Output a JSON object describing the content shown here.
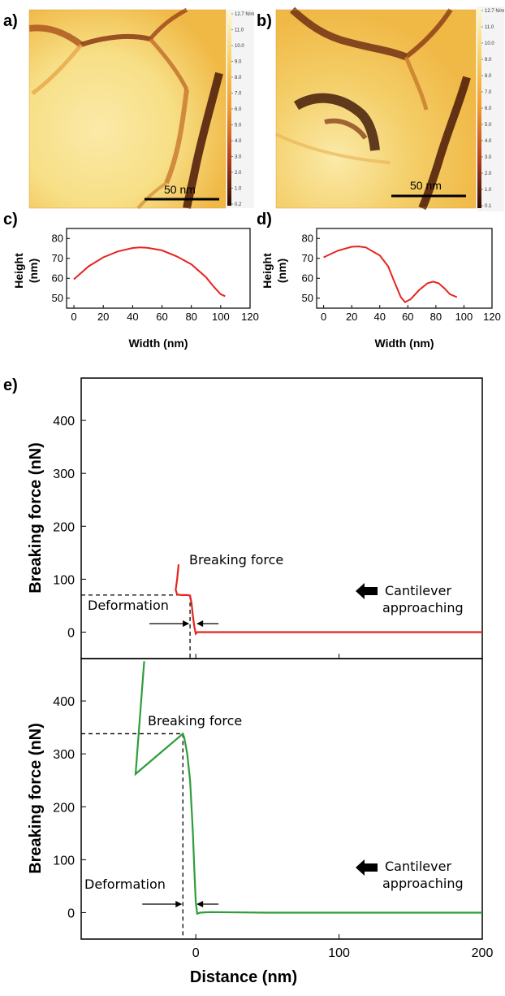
{
  "panels": {
    "a": "a)",
    "b": "b)",
    "c": "c)",
    "d": "d)",
    "e": "e)"
  },
  "images": [
    {
      "panel": "a",
      "scale_bar": "50 nm",
      "colorbar_ticks": [
        "12.7 N/m",
        "11.0",
        "10.0",
        "9.0",
        "8.0",
        "7.0",
        "6.0",
        "5.0",
        "4.0",
        "3.0",
        "2.0",
        "1.0",
        "0.2"
      ],
      "colors": {
        "light": "#f7df86",
        "mid": "#f2b23c",
        "dark": "#6a2810"
      }
    },
    {
      "panel": "b",
      "scale_bar": "50 nm",
      "colorbar_ticks": [
        "12.7 N/m",
        "11.0",
        "10.0",
        "9.0",
        "8.0",
        "7.0",
        "6.0",
        "5.0",
        "4.0",
        "3.0",
        "2.0",
        "1.0",
        "0.1"
      ],
      "colors": {
        "light": "#f7df86",
        "mid": "#f2b23c",
        "dark": "#6a2810"
      }
    }
  ],
  "chart_data": [
    {
      "type": "line",
      "panel": "c",
      "xlabel": "Width (nm)",
      "ylabel": "Height (nm)",
      "xlim": [
        -5,
        120
      ],
      "ylim": [
        45,
        85
      ],
      "xticks": [
        0,
        20,
        40,
        60,
        80,
        100,
        120
      ],
      "yticks": [
        50,
        60,
        70,
        80
      ],
      "series": [
        {
          "color": "#e52420",
          "x": [
            0,
            10,
            20,
            30,
            40,
            45,
            50,
            60,
            70,
            80,
            90,
            95,
            100,
            103
          ],
          "y": [
            59.5,
            66,
            70.5,
            73.5,
            75.2,
            75.5,
            75.3,
            74,
            71,
            67,
            60.5,
            56,
            52,
            51
          ]
        }
      ]
    },
    {
      "type": "line",
      "panel": "d",
      "xlabel": "Width (nm)",
      "ylabel": "Height (nm)",
      "xlim": [
        -5,
        120
      ],
      "ylim": [
        45,
        85
      ],
      "xticks": [
        0,
        20,
        40,
        60,
        80,
        100,
        120
      ],
      "yticks": [
        50,
        60,
        70,
        80
      ],
      "series": [
        {
          "color": "#e52420",
          "x": [
            0,
            10,
            20,
            25,
            30,
            40,
            46,
            50,
            55,
            58,
            62,
            68,
            74,
            78,
            82,
            86,
            90,
            95
          ],
          "y": [
            70.5,
            73.8,
            75.8,
            76,
            75.5,
            71.5,
            66,
            59,
            50.5,
            48,
            49.5,
            54,
            57.5,
            58.3,
            57.5,
            55,
            52,
            50.5
          ]
        }
      ]
    },
    {
      "type": "line",
      "panel": "e-top",
      "xlabel": "",
      "ylabel": "Breaking force (nN)",
      "xlim": [
        -80,
        200
      ],
      "ylim": [
        -50,
        480
      ],
      "xticks": [
        0,
        100,
        200
      ],
      "yticks": [
        0,
        100,
        200,
        300,
        400
      ],
      "series": [
        {
          "color": "#e52420",
          "x": [
            -12,
            -13,
            -14,
            -13,
            -10,
            -6,
            -4,
            -3,
            -2,
            -1,
            0,
            1,
            5,
            50,
            100,
            150,
            200
          ],
          "y": [
            128,
            100,
            80,
            71,
            70,
            70,
            69,
            55,
            30,
            10,
            -3,
            0,
            0,
            0,
            0,
            0,
            0
          ]
        }
      ],
      "breaking_force": {
        "x": -4,
        "y": 70
      },
      "annotations": {
        "breaking_force": "Breaking force",
        "deformation": "Deformation",
        "approach_line1": "Cantilever",
        "approach_line2": "approaching"
      }
    },
    {
      "type": "line",
      "panel": "e-bottom",
      "xlabel": "Distance (nm)",
      "ylabel": "Breaking force (nN)",
      "xlim": [
        -80,
        200
      ],
      "ylim": [
        -50,
        480
      ],
      "xticks": [
        0,
        100,
        200
      ],
      "yticks": [
        0,
        100,
        200,
        300,
        400
      ],
      "series": [
        {
          "color": "#2e9d3a",
          "x": [
            -36,
            -42,
            -9,
            -8,
            -6,
            -4,
            -3,
            -2,
            -1,
            0,
            1,
            3,
            10,
            50,
            100,
            150,
            200
          ],
          "y": [
            475,
            262,
            338,
            330,
            300,
            250,
            200,
            150,
            80,
            20,
            -2,
            0,
            1,
            0,
            0,
            0,
            0
          ]
        }
      ],
      "breaking_force": {
        "x": -9,
        "y": 338
      },
      "annotations": {
        "breaking_force": "Breaking force",
        "deformation": "Deformation",
        "approach_line1": "Cantilever",
        "approach_line2": "approaching"
      }
    }
  ]
}
